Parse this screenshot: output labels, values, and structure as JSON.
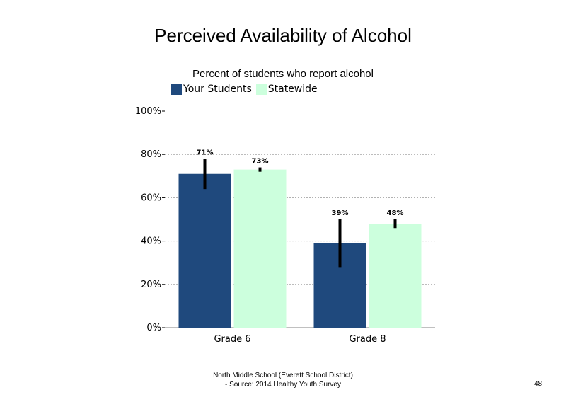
{
  "slide": {
    "title": "Perceived Availability of Alcohol",
    "footer_line1": "North Middle School (Everett School District)",
    "footer_line2": "- Source: 2014 Healthy Youth Survey",
    "page_number": "48"
  },
  "chart_data": {
    "type": "bar",
    "title": "Perceived Availability of Alcohol",
    "subtitle": "Percent of students who report alcohol",
    "categories": [
      "Grade 6",
      "Grade 8"
    ],
    "series": [
      {
        "name": "Your Students",
        "values": [
          71,
          39
        ],
        "labels": [
          "71%",
          "39%"
        ],
        "error_low": [
          64,
          28
        ],
        "error_high": [
          78,
          50
        ],
        "color": "#1F497D"
      },
      {
        "name": "Statewide",
        "values": [
          73,
          48
        ],
        "labels": [
          "73%",
          "48%"
        ],
        "error_low": [
          72,
          46
        ],
        "error_high": [
          74,
          50
        ],
        "color": "#CCFFDD"
      }
    ],
    "ylim": [
      0,
      100
    ],
    "yticks": [
      "0%",
      "20%",
      "40%",
      "60%",
      "80%",
      "100%"
    ],
    "ytick_values": [
      0,
      20,
      40,
      60,
      80,
      100
    ],
    "xlabel": "",
    "ylabel": "",
    "grid": true,
    "legend": "top-left"
  }
}
